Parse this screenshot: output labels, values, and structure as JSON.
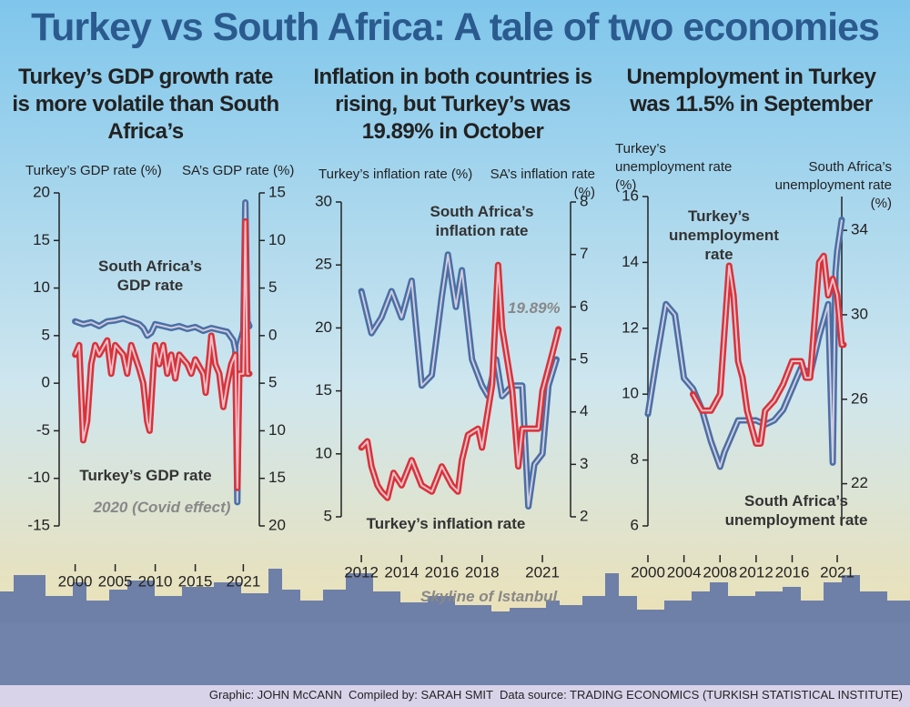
{
  "title": "Turkey vs South Africa: A tale of two economies",
  "skyline_label": "Skyline of Istanbul",
  "credits": "Graphic: JOHN McCANN  Compiled by: SARAH SMIT  Data source: TRADING ECONOMICS (TURKISH STATISTICAL INSTITUTE)",
  "chart_data": [
    {
      "type": "line",
      "title": "Turkey’s GDP growth rate is more volatile than South Africa’s",
      "ylabel": "Turkey’s GDP rate (%)",
      "y2label": "SA’s GDP rate (%)",
      "xlim": [
        1998,
        2023
      ],
      "xticks": [
        2000,
        2005,
        2010,
        2015,
        2021
      ],
      "ylim": [
        -15,
        20
      ],
      "yticks": [
        -15,
        -10,
        -5,
        0,
        5,
        10,
        15,
        20
      ],
      "y2lim": [
        -20,
        15
      ],
      "y2ticks": [
        {
          "value": -20,
          "label": "20"
        },
        {
          "value": -15,
          "label": "15"
        },
        {
          "value": -10,
          "label": "10"
        },
        {
          "value": -5,
          "label": "5"
        },
        0,
        5,
        10,
        15
      ],
      "annotations": [
        "2020 (Covid effect)"
      ],
      "series": [
        {
          "name": "South Africa’s GDP rate",
          "color": "#4a6fa5",
          "axis": "y2",
          "x": [
            2000,
            2001,
            2002,
            2003,
            2004,
            2005,
            2006,
            2007,
            2008,
            2008.5,
            2009,
            2009.5,
            2010,
            2011,
            2012,
            2013,
            2014,
            2015,
            2016,
            2017,
            2018,
            2019,
            2019.75,
            2020,
            2020.25,
            2020.5,
            2021,
            2021.25,
            2021.5,
            2021.75
          ],
          "values": [
            1.5,
            1.2,
            1.4,
            1.0,
            1.5,
            1.6,
            1.8,
            1.5,
            1.2,
            0.8,
            0,
            0.3,
            1.2,
            1.0,
            0.8,
            1.0,
            0.7,
            0.9,
            0.5,
            0.8,
            0.6,
            0.4,
            -0.5,
            -1.5,
            -17.5,
            -1.0,
            0.5,
            14,
            1.5,
            1.0
          ]
        },
        {
          "name": "Turkey’s GDP rate",
          "color": "#d9323a",
          "axis": "y",
          "x": [
            2000,
            2000.5,
            2001,
            2001.5,
            2002,
            2002.5,
            2003,
            2004,
            2004.5,
            2005,
            2006,
            2006.5,
            2007,
            2008,
            2008.5,
            2009,
            2009.3,
            2009.8,
            2010,
            2010.5,
            2011,
            2011.5,
            2012,
            2012.5,
            2013,
            2014,
            2014.5,
            2015,
            2016,
            2016.3,
            2016.8,
            2017,
            2017.5,
            2018,
            2018.5,
            2019,
            2019.5,
            2020,
            2020.25,
            2020.5,
            2021,
            2021.25,
            2021.5,
            2021.75
          ],
          "values": [
            3,
            4,
            -6,
            -4,
            2,
            4,
            3,
            4.5,
            1,
            4,
            3,
            1,
            4,
            1.5,
            0,
            -4,
            -5,
            2,
            4,
            2,
            4,
            1,
            3,
            0.5,
            3,
            2,
            1,
            2.5,
            1,
            -1,
            3,
            5,
            2,
            1,
            -2.5,
            0,
            2,
            3,
            -11,
            1,
            1,
            17,
            1,
            1
          ]
        }
      ]
    },
    {
      "type": "line",
      "title": "Inflation in both countries is rising, but Turkey’s was 19.89% in October",
      "ylabel": "Turkey’s inflation rate (%)",
      "y2label": "SA’s inflation rate (%)",
      "xlim": [
        2011,
        2022.4
      ],
      "xticks": [
        2012,
        2014,
        2016,
        2018,
        2021
      ],
      "ylim": [
        5,
        30
      ],
      "yticks": [
        5,
        10,
        15,
        20,
        25,
        30
      ],
      "y2lim": [
        2,
        8
      ],
      "y2ticks": [
        2,
        3,
        4,
        5,
        6,
        7,
        8
      ],
      "annotations": [
        "19.89%"
      ],
      "series": [
        {
          "name": "South Africa’s inflation rate",
          "color": "#4a6fa5",
          "axis": "y2",
          "x": [
            2012,
            2012.5,
            2013,
            2013.5,
            2014,
            2014.5,
            2015,
            2015.5,
            2016,
            2016.3,
            2016.7,
            2017,
            2017.5,
            2018,
            2018.3,
            2018.7,
            2019,
            2019.5,
            2020,
            2020.3,
            2020.6,
            2021,
            2021.3,
            2021.7
          ],
          "values": [
            6.3,
            5.5,
            5.8,
            6.3,
            5.8,
            6.5,
            4.5,
            4.7,
            6.2,
            7,
            6,
            6.7,
            5,
            4.5,
            4.3,
            5,
            4.3,
            4.5,
            4.5,
            2.2,
            3,
            3.2,
            4.5,
            5
          ]
        },
        {
          "name": "Turkey’s inflation rate",
          "color": "#d9323a",
          "axis": "y",
          "x": [
            2012,
            2012.3,
            2012.5,
            2012.8,
            2013,
            2013.3,
            2013.6,
            2014,
            2014.5,
            2015,
            2015.5,
            2016,
            2016.5,
            2016.8,
            2017,
            2017.3,
            2017.8,
            2018,
            2018.5,
            2018.8,
            2019,
            2019.5,
            2019.8,
            2020,
            2020.5,
            2020.8,
            2021,
            2021.5,
            2021.8
          ],
          "values": [
            10.5,
            11,
            9,
            7.5,
            7,
            6.5,
            8.5,
            7.5,
            9.5,
            7.5,
            7,
            9,
            7.5,
            7,
            9.5,
            11.5,
            12,
            10.5,
            15.5,
            25,
            20,
            15,
            9,
            12,
            12,
            12,
            15,
            18,
            19.89
          ]
        }
      ]
    },
    {
      "type": "line",
      "title": "Unemployment in Turkey was 11.5% in September",
      "ylabel": "Turkey’s unemployment rate (%)",
      "y2label": "South Africa’s unemployment rate (%)",
      "xlim": [
        2000,
        2021.5
      ],
      "xticks": [
        2000,
        2004,
        2008,
        2012,
        2016,
        2021
      ],
      "ylim": [
        6,
        16
      ],
      "yticks": [
        6,
        8,
        10,
        12,
        14,
        16
      ],
      "y2lim": [
        20,
        35.6
      ],
      "y2ticks": [
        22,
        26,
        30,
        34
      ],
      "annotations": [],
      "series": [
        {
          "name": "South Africa’s unemployment rate",
          "color": "#4a6fa5",
          "axis": "y2",
          "x": [
            2000,
            2001,
            2002,
            2003,
            2004,
            2005,
            2006,
            2007,
            2008,
            2008.5,
            2009,
            2010,
            2011,
            2012,
            2013,
            2014,
            2015,
            2016,
            2017,
            2018,
            2019,
            2020,
            2020.5,
            2020.8,
            2021,
            2021.5
          ],
          "values": [
            25.3,
            28,
            30.5,
            30,
            27,
            26.5,
            25.5,
            24,
            22.8,
            23.5,
            24,
            25,
            25,
            25,
            24.8,
            25,
            25.5,
            26.5,
            27.5,
            27.2,
            29,
            30.5,
            23,
            32,
            33,
            34.5
          ]
        },
        {
          "name": "Turkey’s unemployment rate",
          "color": "#d9323a",
          "axis": "y",
          "x": [
            2005,
            2006,
            2007,
            2008,
            2009,
            2009.5,
            2010,
            2010.5,
            2011,
            2012,
            2012.5,
            2013,
            2014,
            2015,
            2016,
            2017,
            2017.5,
            2018,
            2019,
            2019.5,
            2020,
            2020.5,
            2021,
            2021.5,
            2021.7
          ],
          "values": [
            10,
            9.5,
            9.5,
            10,
            13.9,
            13,
            11,
            10.5,
            9.5,
            8.5,
            8.5,
            9.5,
            9.8,
            10.3,
            11,
            11,
            10.5,
            10.5,
            14,
            14.2,
            13,
            13.5,
            13,
            11.5,
            11.5
          ]
        }
      ]
    }
  ]
}
